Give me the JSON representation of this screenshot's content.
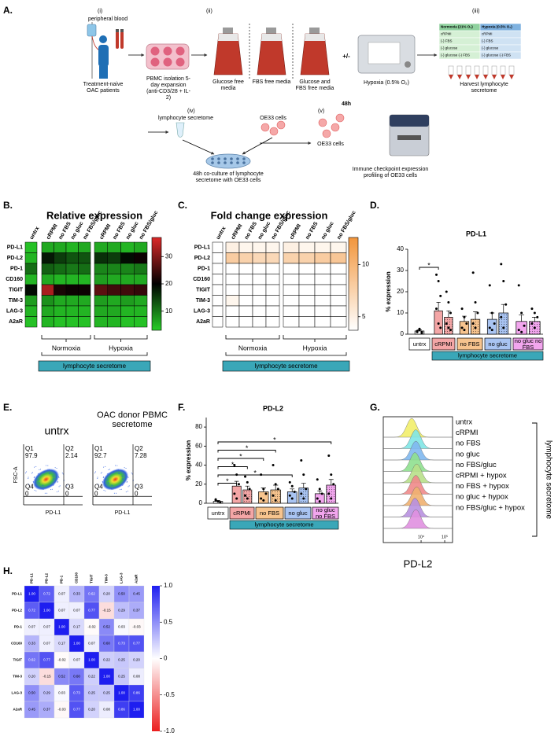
{
  "panel_labels": [
    "A.",
    "B.",
    "C.",
    "D.",
    "E.",
    "F.",
    "G.",
    "H."
  ],
  "schematic": {
    "step_i": "(i)",
    "blood": "peripheral blood",
    "patients": "Treatment-naive OAC patients",
    "pbmc": "PBMC isolation 5-day expansion (anti-CD3/28 + IL-2)",
    "step_ii": "(ii)",
    "media": [
      "Glucose free media",
      "FBS free media",
      "Glucose and FBS free media"
    ],
    "plus_minus": "+/-",
    "hypoxia": "Hypoxia (0.5% O₂)",
    "duration": "48h",
    "step_iii": "(iii)",
    "table_header": [
      "Normoxia (21% O₂)",
      "Hypoxia (0.5% O₂)"
    ],
    "table_rows": [
      [
        "cRPMI",
        "cRPMI"
      ],
      [
        "(-) FBS",
        "(-) FBS"
      ],
      [
        "(-) glucose",
        "(-) glucose"
      ],
      [
        "(-) glucose (-) FBS",
        "(-) glucose (-) FBS"
      ]
    ],
    "harvest": "Harvest lymphocyte secretome",
    "step_iv": "(iv)",
    "secretome": "lymphocyte secretome",
    "oe33_top": "OE33 cells",
    "coculture": "48h co-culture of lymphocyte secretome with OE33 cells",
    "step_v": "(v)",
    "oe33": "OE33 cells",
    "profiling": "Immune checkpoint expression profiling of OE33 cells"
  },
  "heatmaps": [
    {
      "type": "heatmap",
      "title": "Relative expression",
      "colormap": "green-black-red",
      "rows": [
        "PD-L1",
        "PD-L2",
        "PD-1",
        "CD160",
        "TIGIT",
        "TIM-3",
        "LAG-3",
        "A2aR"
      ],
      "columns": [
        "untrx",
        "cRPMI",
        "no FBS",
        "no gluc",
        "no FBS/gluc",
        "cRPMI",
        "no FBS",
        "no gluc",
        "no FBS/gluc"
      ],
      "values": [
        [
          4,
          6,
          6,
          5,
          6,
          6,
          6,
          5,
          6
        ],
        [
          5,
          18,
          15,
          13,
          13,
          16,
          15,
          19,
          21
        ],
        [
          11,
          12,
          11,
          10,
          11,
          9,
          9,
          9,
          10
        ],
        [
          5,
          6,
          5,
          5,
          5,
          7,
          6,
          6,
          6
        ],
        [
          19,
          33,
          22,
          21,
          21,
          27,
          25,
          25,
          24
        ],
        [
          7,
          8,
          6,
          6,
          6,
          7,
          6,
          7,
          6
        ],
        [
          5,
          6,
          5,
          5,
          5,
          6,
          6,
          5,
          5
        ],
        [
          4,
          5,
          4,
          4,
          4,
          5,
          5,
          4,
          4
        ]
      ],
      "colorbar_lim": [
        3,
        37
      ],
      "colorbar_ticks": [
        10,
        20,
        30
      ],
      "groups": [
        "Normoxia",
        "Hypoxia"
      ],
      "footer": "lymphocyte secretome"
    },
    {
      "type": "heatmap",
      "title": "Fold change expression",
      "colormap": "white-orange",
      "rows": [
        "PD-L1",
        "PD-L2",
        "PD-1",
        "CD160",
        "TIGIT",
        "TIM-3",
        "LAG-3",
        "A2aR"
      ],
      "columns": [
        "untrx",
        "cRPMI",
        "no FBS",
        "no gluc",
        "no FBS/gluc",
        "cRPMI",
        "no FBS",
        "no gluc",
        "no FBS/gluc"
      ],
      "values": [
        [
          1,
          5,
          4.5,
          4.5,
          4.5,
          5,
          4.5,
          4.5,
          4.5
        ],
        [
          1,
          8,
          7.5,
          7,
          7,
          7.5,
          7.5,
          8,
          8.5
        ],
        [
          1,
          1,
          1,
          1,
          1,
          1,
          1,
          1,
          1
        ],
        [
          1,
          1,
          1,
          1,
          1,
          1,
          1,
          1,
          1
        ],
        [
          1,
          1.5,
          1,
          1,
          1,
          1.5,
          1.5,
          1.5,
          1.5
        ],
        [
          1,
          4.5,
          1.5,
          1.5,
          1.5,
          2,
          1.5,
          1.5,
          1.5
        ],
        [
          1,
          1,
          1,
          1,
          1,
          1,
          1,
          1,
          1
        ],
        [
          1,
          1,
          1,
          1,
          1,
          1,
          1,
          1,
          1
        ]
      ],
      "colorbar_lim": [
        3.7,
        12.6
      ],
      "colorbar_ticks": [
        5,
        10
      ],
      "groups": [
        "Normoxia",
        "Hypoxia"
      ],
      "footer": "lymphocyte secretome"
    }
  ],
  "bar_charts": [
    {
      "type": "bar",
      "title": "PD-L1",
      "ylabel": "% expression",
      "ylim": [
        0,
        40
      ],
      "yticks": [
        0,
        10,
        20,
        30,
        40
      ],
      "categories": [
        "untrx",
        "cRPMI",
        "no FBS",
        "no gluc",
        "no gluc no FBS"
      ],
      "colors": [
        "#ffffff",
        "#f4a6a6",
        "#f7c48e",
        "#a9c4f2",
        "#f2a6ee"
      ],
      "series": [
        {
          "values": [
            1.5,
            11,
            6,
            7,
            6
          ],
          "errors": [
            0.5,
            4,
            2.5,
            3,
            3
          ],
          "points": [
            [
              1,
              2,
              0.5,
              1.5,
              2.5,
              1
            ],
            [
              28,
              25,
              18,
              12,
              5,
              3
            ],
            [
              12,
              8,
              5,
              3,
              2
            ],
            [
              23,
              10,
              5,
              3,
              2
            ],
            [
              23,
              10,
              4,
              2,
              1
            ]
          ]
        },
        {
          "values": [
            null,
            8,
            7,
            10,
            6
          ],
          "errors": [
            null,
            3,
            3.5,
            4,
            2
          ],
          "hatch": true,
          "points": [
            null,
            [
              20,
              15,
              10,
              5,
              3,
              2
            ],
            [
              29,
              15,
              10,
              5,
              3
            ],
            [
              33,
              25,
              14,
              8,
              3
            ],
            [
              12,
              10,
              8,
              5,
              3
            ]
          ]
        }
      ],
      "comparisons": [
        {
          "to": [
            1,
            0
          ],
          "label": "*"
        }
      ],
      "footer": "lymphocyte secretome"
    },
    {
      "type": "bar",
      "title": "PD-L2",
      "ylabel": "% expression",
      "ylim": [
        0,
        90
      ],
      "yticks": [
        0,
        20,
        40,
        60,
        80
      ],
      "categories": [
        "untrx",
        "cRPMI",
        "no FBS",
        "no gluc",
        "no gluc no FBS"
      ],
      "colors": [
        "#ffffff",
        "#f4a6a6",
        "#f7c48e",
        "#a9c4f2",
        "#f2a6ee"
      ],
      "series": [
        {
          "values": [
            2,
            18,
            12,
            12,
            10
          ],
          "errors": [
            0.8,
            5,
            4,
            3,
            3
          ],
          "points": [
            [
              3,
              2,
              1,
              4
            ],
            [
              40,
              30,
              20,
              10,
              5
            ],
            [
              30,
              15,
              10,
              5,
              3
            ],
            [
              22,
              18,
              12,
              8,
              5
            ],
            [
              25,
              15,
              10,
              5,
              2
            ]
          ]
        },
        {
          "values": [
            null,
            14,
            14,
            16,
            19
          ],
          "errors": [
            null,
            4,
            5,
            5,
            6
          ],
          "hatch": true,
          "points": [
            null,
            [
              28,
              22,
              15,
              8,
              5
            ],
            [
              40,
              20,
              15,
              8,
              3
            ],
            [
              45,
              30,
              15,
              10,
              5
            ],
            [
              50,
              30,
              20,
              10,
              5
            ]
          ]
        }
      ],
      "comparisons": [
        {
          "to": [
            4,
            1
          ],
          "label": "*"
        },
        {
          "to": [
            2,
            1
          ],
          "label": "*"
        },
        {
          "to": [
            2,
            0
          ],
          "label": "*"
        },
        {
          "to": [
            1,
            1
          ],
          "label": "*"
        },
        {
          "to": [
            3,
            0
          ],
          "label": "*"
        },
        {
          "to": [
            1,
            0
          ],
          "label": "*"
        }
      ],
      "footer": "lymphocyte secretome"
    }
  ],
  "flow": {
    "plots": [
      {
        "title": "untrx",
        "quadrants": [
          {
            "name": "Q1",
            "value": 97.9
          },
          {
            "name": "Q2",
            "value": 2.14
          },
          {
            "name": "Q3",
            "value": 0
          },
          {
            "name": "Q4",
            "value": 0
          }
        ]
      },
      {
        "title": "OAC donor PBMC secretome",
        "quadrants": [
          {
            "name": "Q1",
            "value": 92.7
          },
          {
            "name": "Q2",
            "value": 7.28
          },
          {
            "name": "Q3",
            "value": 0
          },
          {
            "name": "Q4",
            "value": 0
          }
        ]
      }
    ],
    "ylabel": "FSC-A",
    "xlabel": "PD-L1"
  },
  "histogram": {
    "type": "ridgeline",
    "labels": [
      "untrx",
      "cRPMI",
      "no FBS",
      "no gluc",
      "no FBS/gluc",
      "cRPMI + hypox",
      "no FBS + hypox",
      "no gluc + hypox",
      "no FBS/gluc + hypox"
    ],
    "colors": [
      "#f2ee6a",
      "#7fe6e6",
      "#7fb8f0",
      "#8fe08f",
      "#b8e08a",
      "#f08a8a",
      "#f0b070",
      "#b890e0",
      "#e090e0"
    ],
    "peaks": [
      4000,
      6000,
      6000,
      5500,
      6500,
      6000,
      6500,
      5500,
      6000
    ],
    "log": true,
    "xlim": [
      250,
      215000
    ],
    "xticks": [
      {
        "value": 10000,
        "label": "10⁴"
      },
      {
        "value": 100000,
        "label": "10⁵"
      }
    ],
    "xlabel": "PD-L2",
    "side_label": "lymphocyte secretome"
  },
  "correlation": {
    "labels": [
      "PD-L1",
      "PD-L2",
      "PD-1",
      "CD160",
      "TIGIT",
      "TIM-3",
      "LAG-3",
      "A2aR"
    ],
    "matrix": [
      [
        "1.00",
        "0.72",
        "0.07",
        "0.33",
        "0.62",
        "0.20",
        "0.50",
        "0.45"
      ],
      [
        "0.72",
        "1.00",
        "0.07",
        "0.07",
        "0.77",
        "-0.15",
        "0.29",
        "0.37"
      ],
      [
        "0.07",
        "0.07",
        "1.00",
        "0.17",
        "-0.02",
        "0.52",
        "0.03",
        "-0.03"
      ],
      [
        "0.33",
        "0.07",
        "0.17",
        "1.00",
        "0.07",
        "0.60",
        "0.73",
        "0.77"
      ],
      [
        "0.62",
        "0.77",
        "-0.02",
        "0.07",
        "1.00",
        "0.22",
        "0.25",
        "0.20"
      ],
      [
        "0.20",
        "-0.15",
        "0.52",
        "0.60",
        "0.22",
        "1.00",
        "0.25",
        "0.08"
      ],
      [
        "0.50",
        "0.29",
        "0.03",
        "0.73",
        "0.25",
        "0.25",
        "1.00",
        "0.86"
      ],
      [
        "0.45",
        "0.37",
        "-0.03",
        "0.77",
        "0.20",
        "0.08",
        "0.86",
        "1.00"
      ]
    ],
    "colorbar_lim": [
      -1,
      1
    ],
    "colorbar_ticks": [
      {
        "value": 1,
        "label": "1.0"
      },
      0.5,
      0,
      -0.5,
      {
        "value": -1,
        "label": "-1.0"
      }
    ]
  }
}
